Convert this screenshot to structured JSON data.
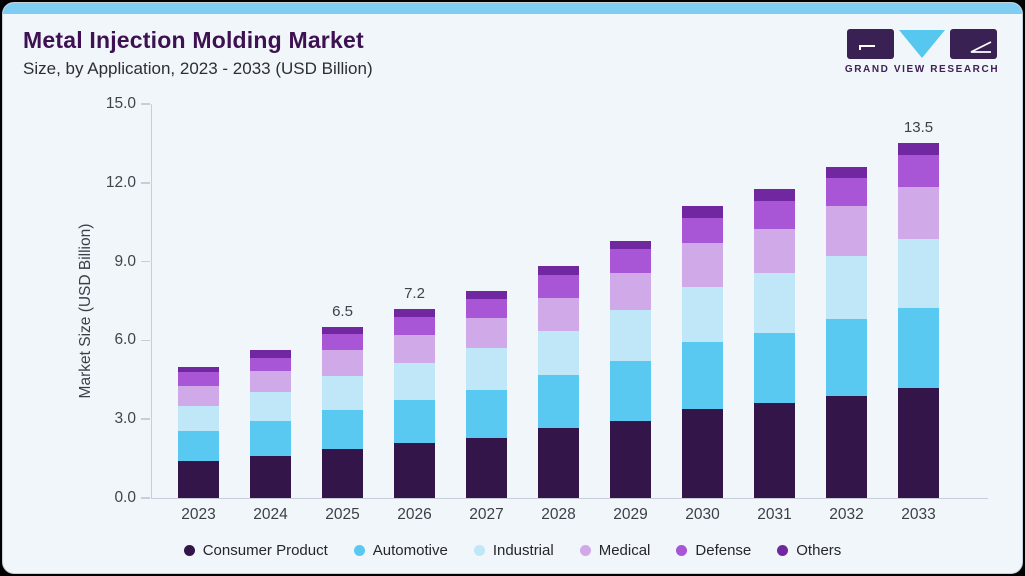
{
  "header": {
    "title": "Metal Injection Molding Market",
    "subtitle": "Size, by Application, 2023 - 2033 (USD Billion)",
    "brand_name": "GRAND VIEW RESEARCH",
    "brand_icons": [
      "gvr-g-block-icon",
      "gvr-v-triangle-icon",
      "gvr-r-block-icon"
    ]
  },
  "colors": {
    "accent_bar": "#7fcdf3",
    "card_background": "#f1f6fa",
    "title_text": "#3d1152",
    "axis_line": "#c7ced9"
  },
  "chart_data": {
    "type": "bar",
    "stacked": true,
    "title": "Metal Injection Molding Market Size, by Application, 2023 - 2033 (USD Billion)",
    "xlabel": "",
    "ylabel": "Market Size (USD Billion)",
    "ylim": [
      0,
      15
    ],
    "yticks": [
      "0.0",
      "3.0",
      "6.0",
      "9.0",
      "12.0",
      "15.0"
    ],
    "grid": false,
    "legend_position": "bottom",
    "categories": [
      "2023",
      "2024",
      "2025",
      "2026",
      "2027",
      "2028",
      "2029",
      "2030",
      "2031",
      "2032",
      "2033"
    ],
    "series": [
      {
        "name": "Consumer Product",
        "color": "#331549",
        "values": [
          1.4,
          1.6,
          1.85,
          2.1,
          2.3,
          2.65,
          2.95,
          3.4,
          3.6,
          3.9,
          4.2
        ]
      },
      {
        "name": "Automotive",
        "color": "#59c9f2",
        "values": [
          1.15,
          1.35,
          1.5,
          1.65,
          1.8,
          2.05,
          2.25,
          2.55,
          2.7,
          2.9,
          3.05
        ]
      },
      {
        "name": "Industrial",
        "color": "#bfe7f8",
        "values": [
          0.95,
          1.1,
          1.3,
          1.4,
          1.6,
          1.65,
          1.95,
          2.1,
          2.25,
          2.4,
          2.6
        ]
      },
      {
        "name": "Medical",
        "color": "#cfa9e8",
        "values": [
          0.75,
          0.8,
          1.0,
          1.05,
          1.15,
          1.25,
          1.4,
          1.65,
          1.7,
          1.9,
          2.0
        ]
      },
      {
        "name": "Defense",
        "color": "#a855d6",
        "values": [
          0.55,
          0.5,
          0.58,
          0.7,
          0.72,
          0.88,
          0.93,
          0.95,
          1.05,
          1.1,
          1.2
        ]
      },
      {
        "name": "Others",
        "color": "#7127a0",
        "values": [
          0.2,
          0.3,
          0.27,
          0.3,
          0.3,
          0.35,
          0.32,
          0.48,
          0.45,
          0.42,
          0.45
        ]
      }
    ],
    "value_labels": {
      "2025": "6.5",
      "2026": "7.2",
      "2033": "13.5"
    }
  }
}
